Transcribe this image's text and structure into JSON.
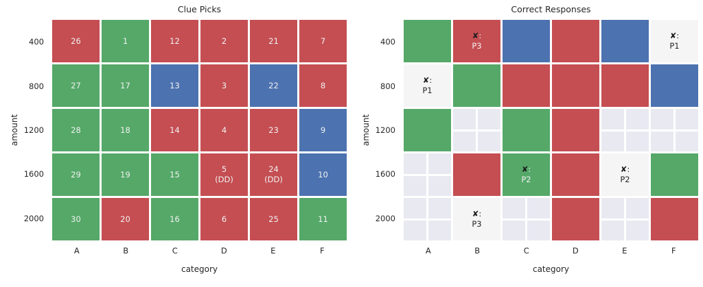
{
  "palette": {
    "red": "#c44e52",
    "green": "#55a868",
    "blue": "#4c72b0",
    "white": "#f5f5f5",
    "empty": "#e9e9f2",
    "cell_text_light": "#f2f2f2",
    "cell_text_dark": "#262626",
    "mark_x_color": "#1c1c1c"
  },
  "chart_data": [
    {
      "type": "heatmap",
      "title": "Clue Picks",
      "xlabel": "category",
      "ylabel": "amount",
      "x_categories": [
        "A",
        "B",
        "C",
        "D",
        "E",
        "F"
      ],
      "y_categories": [
        "400",
        "800",
        "1200",
        "1600",
        "2000"
      ],
      "legend_position": "none",
      "grid": false,
      "cells": [
        [
          {
            "label": "26",
            "color": "red"
          },
          {
            "label": "1",
            "color": "green"
          },
          {
            "label": "12",
            "color": "red"
          },
          {
            "label": "2",
            "color": "red"
          },
          {
            "label": "21",
            "color": "red"
          },
          {
            "label": "7",
            "color": "red"
          }
        ],
        [
          {
            "label": "27",
            "color": "green"
          },
          {
            "label": "17",
            "color": "green"
          },
          {
            "label": "13",
            "color": "blue"
          },
          {
            "label": "3",
            "color": "red"
          },
          {
            "label": "22",
            "color": "blue"
          },
          {
            "label": "8",
            "color": "red"
          }
        ],
        [
          {
            "label": "28",
            "color": "green"
          },
          {
            "label": "18",
            "color": "green"
          },
          {
            "label": "14",
            "color": "red"
          },
          {
            "label": "4",
            "color": "red"
          },
          {
            "label": "23",
            "color": "red"
          },
          {
            "label": "9",
            "color": "blue"
          }
        ],
        [
          {
            "label": "29",
            "color": "green"
          },
          {
            "label": "19",
            "color": "green"
          },
          {
            "label": "15",
            "color": "green"
          },
          {
            "label": "5\n(DD)",
            "color": "red"
          },
          {
            "label": "24\n(DD)",
            "color": "red"
          },
          {
            "label": "10",
            "color": "blue"
          }
        ],
        [
          {
            "label": "30",
            "color": "green"
          },
          {
            "label": "20",
            "color": "red"
          },
          {
            "label": "16",
            "color": "green"
          },
          {
            "label": "6",
            "color": "red"
          },
          {
            "label": "25",
            "color": "red"
          },
          {
            "label": "11",
            "color": "green"
          }
        ]
      ]
    },
    {
      "type": "heatmap",
      "title": "Correct Responses",
      "xlabel": "category",
      "ylabel": "amount",
      "x_categories": [
        "A",
        "B",
        "C",
        "D",
        "E",
        "F"
      ],
      "y_categories": [
        "400",
        "800",
        "1200",
        "1600",
        "2000"
      ],
      "legend_position": "none",
      "grid": true,
      "mark_glyph": "✘",
      "cells": [
        [
          {
            "color": "green"
          },
          {
            "color": "red",
            "mark": "P3"
          },
          {
            "color": "blue"
          },
          {
            "color": "red"
          },
          {
            "color": "blue"
          },
          {
            "color": "white",
            "mark": "P1"
          }
        ],
        [
          {
            "color": "white",
            "mark": "P1"
          },
          {
            "color": "green"
          },
          {
            "color": "red"
          },
          {
            "color": "red"
          },
          {
            "color": "red"
          },
          {
            "color": "blue"
          }
        ],
        [
          {
            "color": "green"
          },
          {
            "color": "empty"
          },
          {
            "color": "green"
          },
          {
            "color": "red"
          },
          {
            "color": "empty"
          },
          {
            "color": "empty"
          }
        ],
        [
          {
            "color": "empty"
          },
          {
            "color": "red"
          },
          {
            "color": "green",
            "mark": "P2"
          },
          {
            "color": "red"
          },
          {
            "color": "white",
            "mark": "P2"
          },
          {
            "color": "green"
          }
        ],
        [
          {
            "color": "empty"
          },
          {
            "color": "white",
            "mark": "P3"
          },
          {
            "color": "empty"
          },
          {
            "color": "red"
          },
          {
            "color": "empty"
          },
          {
            "color": "red"
          }
        ]
      ]
    }
  ]
}
